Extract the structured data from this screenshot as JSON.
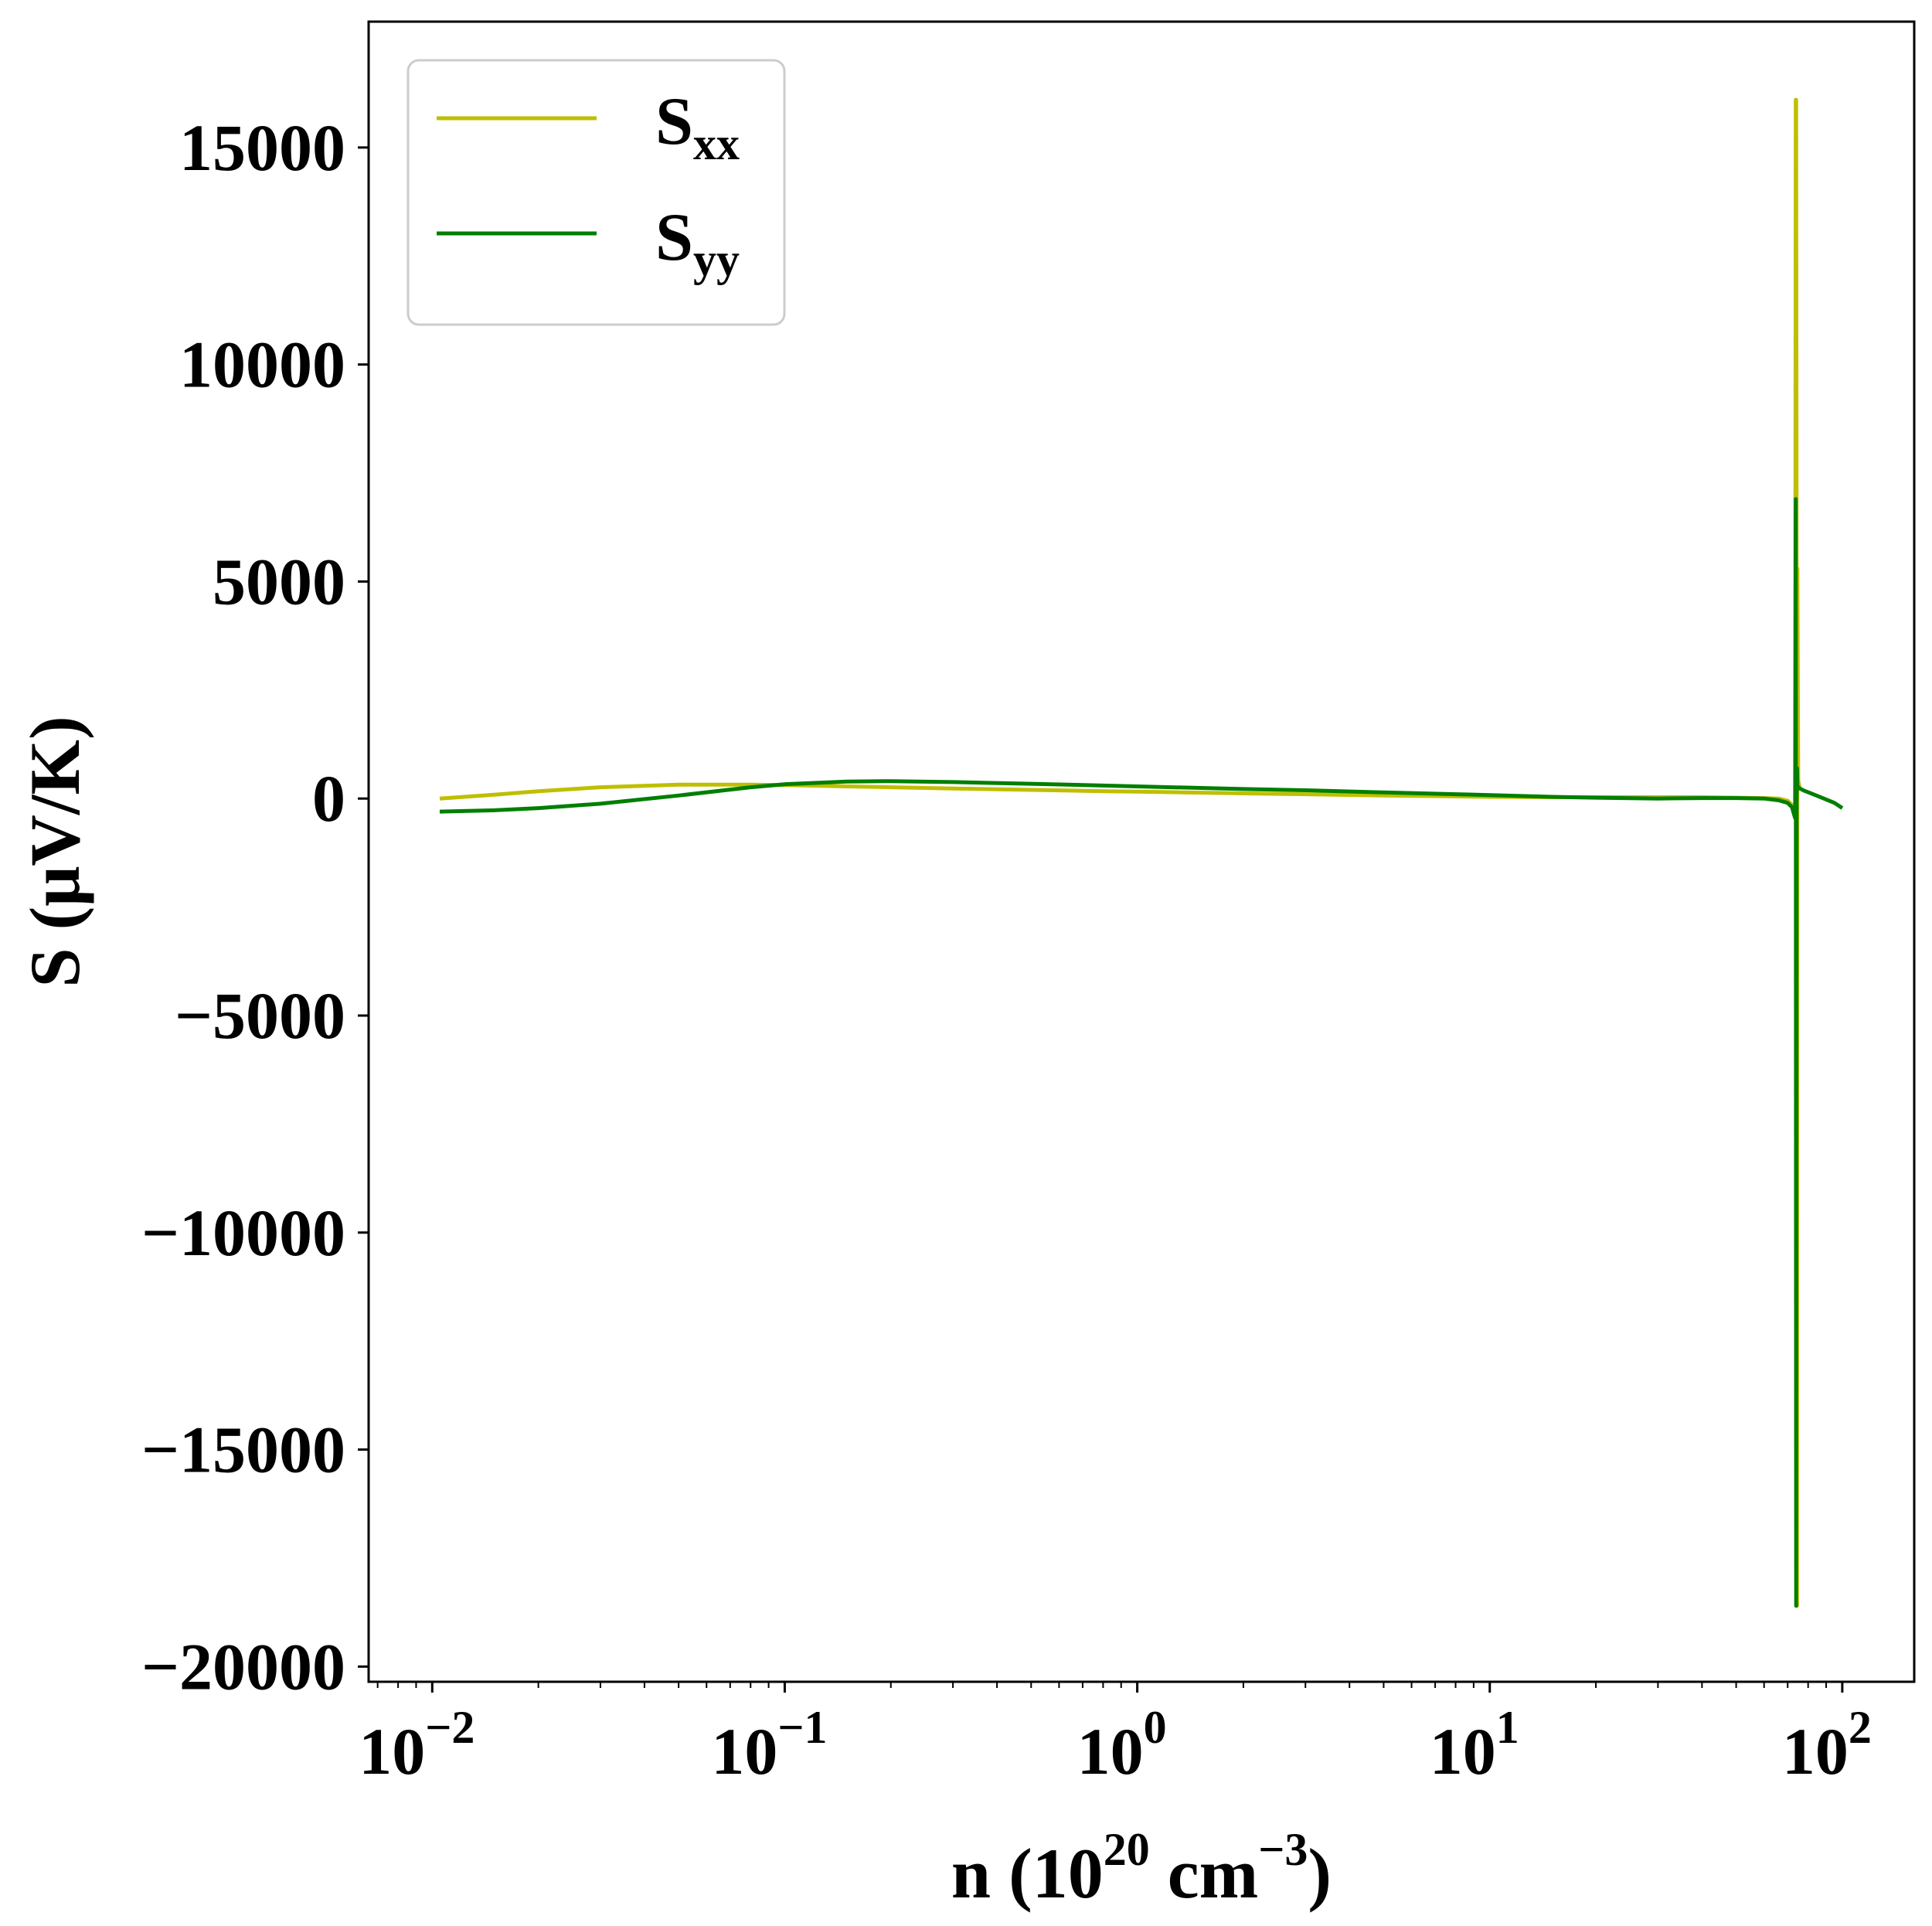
{
  "chart_data": {
    "type": "line",
    "xscale": "log",
    "xlim": [
      0.0066,
      160
    ],
    "ylim": [
      -20350,
      17900
    ],
    "xlabel": {
      "main": "n (10",
      "exp1": "20",
      "mid": " cm",
      "exp2": "−3",
      "end": ")"
    },
    "ylabel": "S (μV/K)",
    "xticks": [
      {
        "value": 0.01,
        "base": "10",
        "exp": "−2"
      },
      {
        "value": 0.1,
        "base": "10",
        "exp": "−1"
      },
      {
        "value": 1,
        "base": "10",
        "exp": "0"
      },
      {
        "value": 10,
        "base": "10",
        "exp": "1"
      },
      {
        "value": 100,
        "base": "10",
        "exp": "2"
      }
    ],
    "yticks": [
      {
        "value": 15000,
        "label": "15000"
      },
      {
        "value": 10000,
        "label": "10000"
      },
      {
        "value": 5000,
        "label": "5000"
      },
      {
        "value": 0,
        "label": "0"
      },
      {
        "value": -5000,
        "label": "−5000"
      },
      {
        "value": -10000,
        "label": "−10000"
      },
      {
        "value": -15000,
        "label": "−15000"
      },
      {
        "value": -20000,
        "label": "−20000"
      }
    ],
    "legend_position": "upper-left",
    "series": [
      {
        "name": "S",
        "sub": "xx",
        "color": "#bfbf00",
        "x": [
          0.0105,
          0.015,
          0.02,
          0.03,
          0.05,
          0.08,
          0.1,
          0.15,
          0.2,
          0.3,
          0.5,
          0.8,
          1,
          2,
          3,
          5,
          8,
          10,
          15,
          20,
          30,
          40,
          50,
          60,
          66,
          70,
          72,
          73.5,
          73.8,
          74.0,
          74.2,
          74.4,
          74.6,
          75,
          76
        ],
        "y": [
          0,
          90,
          170,
          260,
          320,
          320,
          310,
          280,
          260,
          230,
          200,
          170,
          160,
          120,
          100,
          70,
          50,
          40,
          30,
          30,
          30,
          30,
          20,
          10,
          0,
          -50,
          -150,
          -400,
          16100,
          16100,
          5200,
          -18600,
          5300,
          400,
          200
        ]
      },
      {
        "name": "S",
        "sub": "yy",
        "color": "#007f00",
        "x": [
          0.0105,
          0.015,
          0.02,
          0.03,
          0.05,
          0.08,
          0.1,
          0.15,
          0.2,
          0.3,
          0.5,
          0.8,
          1,
          2,
          3,
          5,
          8,
          10,
          15,
          20,
          30,
          40,
          50,
          60,
          66,
          70,
          72,
          73.5,
          73.8,
          74.0,
          74.2,
          74.4,
          74.6,
          75,
          78,
          85,
          95,
          100
        ],
        "y": [
          -300,
          -270,
          -220,
          -120,
          70,
          260,
          330,
          390,
          400,
          380,
          340,
          300,
          280,
          220,
          190,
          140,
          100,
          80,
          40,
          20,
          0,
          10,
          10,
          0,
          -40,
          -100,
          -200,
          -450,
          6900,
          -18600,
          -100,
          700,
          300,
          250,
          180,
          60,
          -100,
          -220
        ]
      }
    ]
  }
}
